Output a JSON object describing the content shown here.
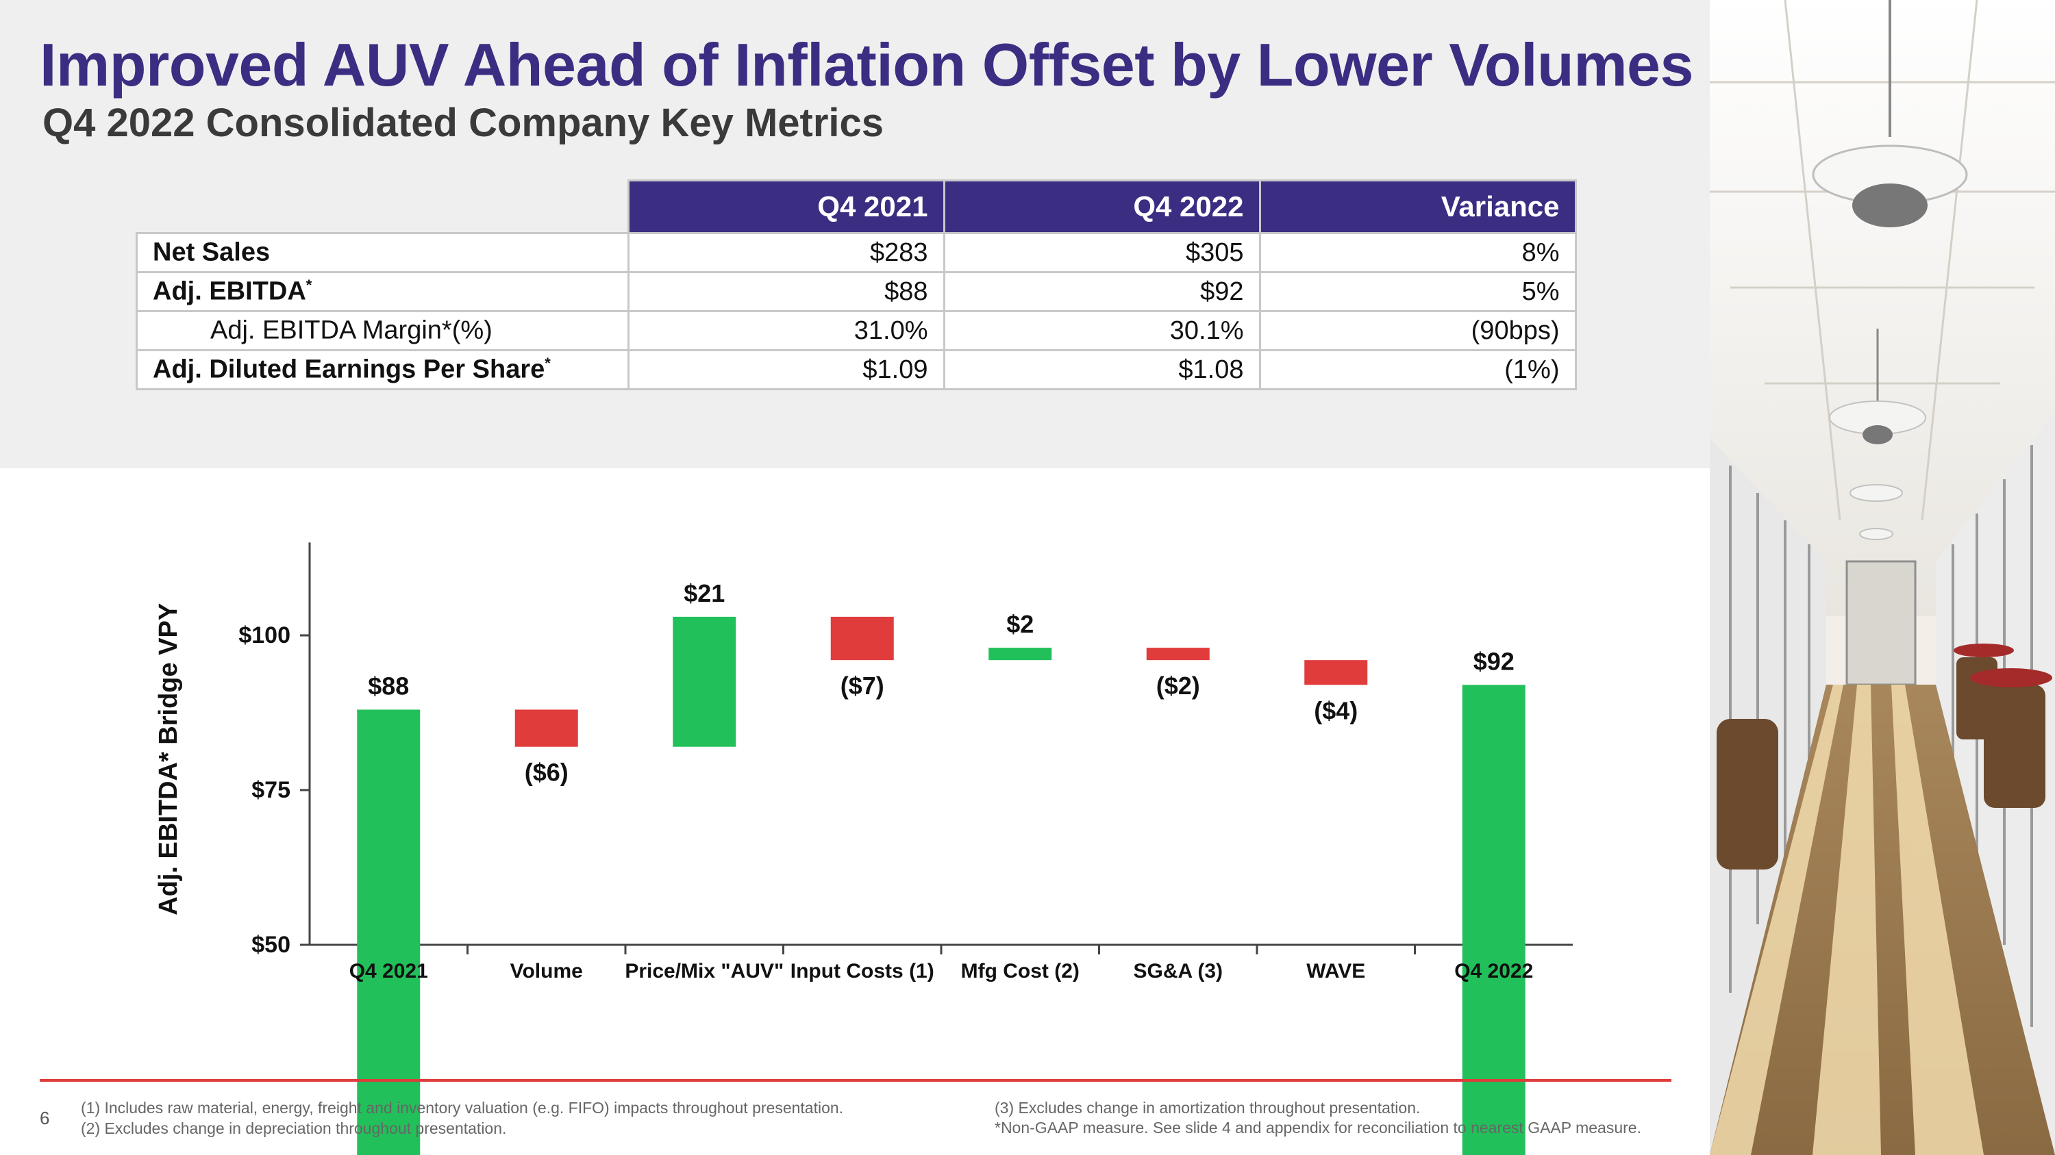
{
  "title": "Improved AUV Ahead of Inflation Offset by Lower Volumes",
  "subtitle": "Q4 2022 Consolidated Company Key Metrics",
  "table": {
    "headers": [
      "Q4 2021",
      "Q4 2022",
      "Variance"
    ],
    "rows": [
      {
        "label": "Net Sales",
        "sup": "",
        "q4_2021": "$283",
        "q4_2022": "$305",
        "variance": "8%"
      },
      {
        "label": "Adj. EBITDA",
        "sup": "*",
        "q4_2021": "$88",
        "q4_2022": "$92",
        "variance": "5%"
      },
      {
        "label": "Adj. EBITDA Margin*(%)",
        "sup": "",
        "q4_2021": "31.0%",
        "q4_2022": "30.1%",
        "variance": "(90bps)"
      },
      {
        "label": "Adj. Diluted Earnings Per Share",
        "sup": "*",
        "q4_2021": "$1.09",
        "q4_2022": "$1.08",
        "variance": "(1%)"
      }
    ]
  },
  "chart_data": {
    "type": "bar",
    "subtype": "waterfall",
    "ylabel": "Adj. EBITDA* Bridge VPY",
    "ylim": [
      50,
      115
    ],
    "yticks": [
      50,
      75,
      100
    ],
    "ytick_labels": [
      "$50",
      "$75",
      "$100"
    ],
    "categories": [
      "Q4 2021",
      "Volume",
      "Price/Mix \"AUV\"",
      "Input Costs (1)",
      "Mfg Cost (2)",
      "SG&A (3)",
      "WAVE",
      "Q4 2022"
    ],
    "values": [
      88,
      -6,
      21,
      -7,
      2,
      -2,
      -4,
      92
    ],
    "bar_kind": [
      "total",
      "delta",
      "delta",
      "delta",
      "delta",
      "delta",
      "delta",
      "total"
    ],
    "value_labels": [
      "$88",
      "($6)",
      "$21",
      "($7)",
      "$2",
      "($2)",
      "($4)",
      "$92"
    ],
    "colors": {
      "increase": "#22c05a",
      "decrease": "#e03c3c",
      "total": "#22c05a"
    }
  },
  "footer": {
    "page_number": "6",
    "note1": "(1) Includes raw material, energy, freight and inventory valuation (e.g. FIFO) impacts throughout presentation.",
    "note2": "(2) Excludes change in depreciation throughout presentation.",
    "note3": "(3) Excludes change in amortization throughout presentation.",
    "note4": "*Non-GAAP measure. See slide 4 and appendix for reconciliation to nearest GAAP measure."
  },
  "photo_icon": "cafeteria-hallway-photo"
}
